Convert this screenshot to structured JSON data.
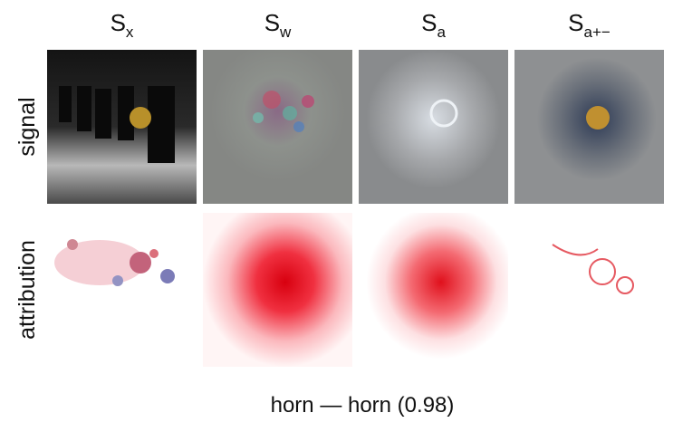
{
  "columns": [
    {
      "main": "S",
      "sub": "x"
    },
    {
      "main": "S",
      "sub": "w"
    },
    {
      "main": "S",
      "sub": "a"
    },
    {
      "main": "S",
      "sub": "a+−"
    }
  ],
  "rows": [
    "signal",
    "attribution"
  ],
  "caption": "horn — horn (0.98)"
}
